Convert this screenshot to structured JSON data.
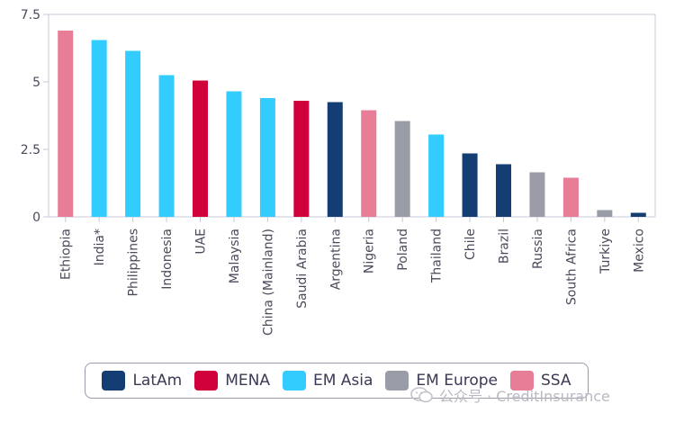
{
  "chart_data": {
    "type": "bar",
    "title": "",
    "xlabel": "",
    "ylabel": "",
    "ylim": [
      0,
      7.5
    ],
    "yticks": [
      "0",
      "2.5",
      "5",
      "7.5"
    ],
    "grid": false,
    "legend_position": "bottom",
    "legend": [
      {
        "name": "LatAm",
        "color": "#143d73"
      },
      {
        "name": "MENA",
        "color": "#d0003a"
      },
      {
        "name": "EM Asia",
        "color": "#33ccff"
      },
      {
        "name": "EM Europe",
        "color": "#9a9ca8"
      },
      {
        "name": "SSA",
        "color": "#e87d98"
      }
    ],
    "categories": [
      "Ethiopia",
      "India*",
      "Philippines",
      "Indonesia",
      "UAE",
      "Malaysia",
      "China (Mainland)",
      "Saudi Arabia",
      "Argentina",
      "Nigeria",
      "Poland",
      "Thailand",
      "Chile",
      "Brazil",
      "Russia",
      "South Africa",
      "Turkiye",
      "Mexico"
    ],
    "values": [
      6.9,
      6.55,
      6.15,
      5.25,
      5.05,
      4.65,
      4.4,
      4.3,
      4.25,
      3.95,
      3.55,
      3.05,
      2.35,
      1.95,
      1.65,
      1.45,
      0.25,
      0.15
    ],
    "groups": [
      "SSA",
      "EM Asia",
      "EM Asia",
      "EM Asia",
      "MENA",
      "EM Asia",
      "EM Asia",
      "MENA",
      "LatAm",
      "SSA",
      "EM Europe",
      "EM Asia",
      "LatAm",
      "LatAm",
      "EM Europe",
      "SSA",
      "EM Europe",
      "LatAm"
    ]
  },
  "watermark": {
    "text": "公众号 · CreditInsurance",
    "icon": "wechat-icon"
  }
}
